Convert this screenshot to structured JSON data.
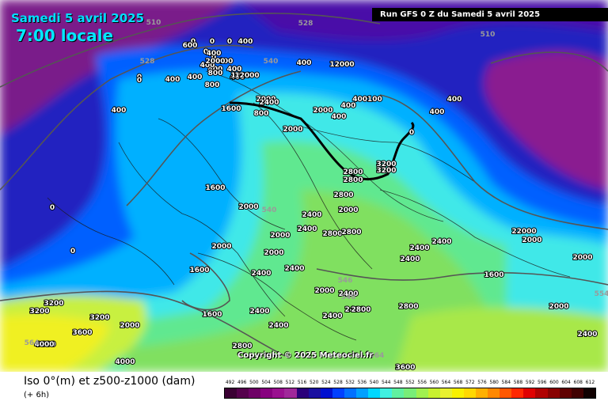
{
  "header": {
    "date": "Samedi 5 avril 2025",
    "time": "7:00 locale"
  },
  "run_info": "Run GFS 0 Z du Samedi 5 avril 2025",
  "copyright": "Copyright © 2025 Meteociel.fr",
  "legend": {
    "title": "Iso 0°(m) et z500-z1000 (dam)",
    "subtitle": "(+ 6h)",
    "scale_values": [
      "492",
      "496",
      "500",
      "504",
      "508",
      "512",
      "516",
      "520",
      "524",
      "528",
      "532",
      "536",
      "540",
      "544",
      "548",
      "552",
      "556",
      "560",
      "564",
      "568",
      "572",
      "576",
      "580",
      "584",
      "588",
      "592",
      "596",
      "600",
      "604",
      "608",
      "612"
    ],
    "scale_colors": [
      "#3a0033",
      "#55004c",
      "#6e0066",
      "#87007f",
      "#9a1090",
      "#a0289a",
      "#2a007a",
      "#1a10a0",
      "#0010d0",
      "#0040ff",
      "#0070ff",
      "#00a0ff",
      "#00d8ff",
      "#40f0e0",
      "#60f0a0",
      "#78ee78",
      "#a0f050",
      "#c8f030",
      "#e8f030",
      "#f8f000",
      "#ffd800",
      "#ffb000",
      "#ff8800",
      "#ff5800",
      "#ff2800",
      "#e00000",
      "#b00000",
      "#880000",
      "#600000",
      "#400000",
      "#100000"
    ]
  },
  "map_labels": {
    "iso": [
      "0",
      "0",
      "0",
      "0",
      "0",
      "0",
      "0",
      "0",
      "0",
      "0",
      "0",
      "400",
      "400",
      "400",
      "400",
      "400",
      "400",
      "400",
      "400",
      "400",
      "400",
      "400",
      "400",
      "400",
      "400",
      "400",
      "600",
      "800",
      "800",
      "800",
      "1200",
      "1600",
      "1600",
      "1600",
      "1600",
      "1600",
      "2000",
      "2000",
      "2000",
      "2000",
      "2000",
      "2000",
      "2000",
      "2000",
      "2000",
      "2000",
      "2000",
      "2000",
      "2000",
      "2000",
      "2400",
      "2400",
      "2400",
      "2400",
      "2400",
      "2400",
      "2400",
      "2400",
      "2400",
      "2400",
      "2400",
      "2400",
      "2400",
      "2400",
      "2800",
      "2800",
      "2800",
      "2800",
      "2800",
      "2800",
      "2800",
      "2800",
      "3200",
      "3200",
      "3200",
      "3200",
      "3200",
      "3600",
      "3600",
      "3600",
      "4000",
      "4000",
      "12000",
      "12000",
      "22000",
      "400100"
    ],
    "contours": [
      "510",
      "510",
      "528",
      "528",
      "540",
      "540",
      "546",
      "546",
      "564",
      "564",
      "554"
    ]
  }
}
